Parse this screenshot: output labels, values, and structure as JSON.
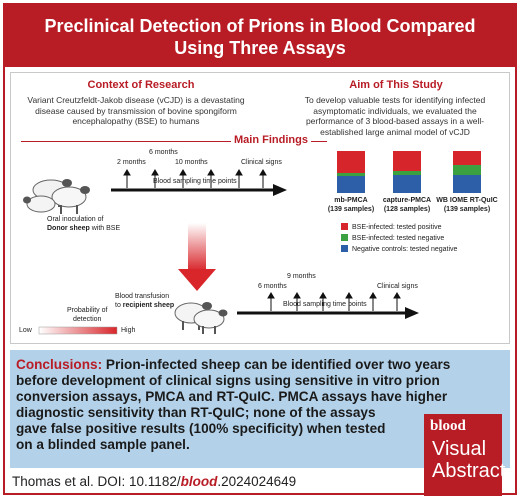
{
  "header": {
    "title_line1": "Preclinical Detection of Prions in Blood Compared",
    "title_line2": "Using Three Assays"
  },
  "context": {
    "title": "Context of Research",
    "lines": [
      "Variant Creutzfeldt-Jakob disease (vCJD) is a devastating",
      "disease caused by transmission of bovine spongiform",
      "encephalopathy (BSE) to humans"
    ]
  },
  "aim": {
    "title": "Aim of This Study",
    "lines": [
      "To develop valuable tests for identifying infected",
      "asymptomatic individuals, we evaluated the",
      "performance of 3 blood-based assays in a well-",
      "established large animal model of vCJD"
    ]
  },
  "main_findings": {
    "title": "Main Findings",
    "donor_timeline": {
      "ticks": [
        "2 months",
        "6 months",
        "10 months",
        "Clinical signs"
      ],
      "axis_label": "Blood sampling time points",
      "caption_line1": "Oral inoculation of",
      "caption_line2_bold": "Donor sheep",
      "caption_line2_rest": " with BSE"
    },
    "recipient_timeline": {
      "ticks": [
        "6 months",
        "9 months",
        "Clinical signs"
      ],
      "axis_label": "Blood sampling time points",
      "caption_line1": "Blood transfusion",
      "caption_line2_prefix": "to ",
      "caption_line2_bold": "recipient sheep"
    },
    "probability": {
      "label_line1": "Probability of",
      "label_line2": "detection",
      "low": "Low",
      "high": "High"
    },
    "assays": [
      {
        "name": "mb-PMCA",
        "samples": "(139 samples)"
      },
      {
        "name": "capture-PMCA",
        "samples": "(128 samples)"
      },
      {
        "name": "WB IOME RT-QuIC",
        "samples": "(139 samples)"
      }
    ],
    "legend": [
      {
        "label": "BSE-infected: tested positive",
        "color": "#d7262b"
      },
      {
        "label": "BSE-infected: tested negative",
        "color": "#3aa040"
      },
      {
        "label": "Negative controls: tested negative",
        "color": "#2d5ea8"
      }
    ]
  },
  "conclusions": {
    "label": "Conclusions:",
    "lines": [
      " Prion-infected sheep can be identified over two years",
      "before development of clinical signs using sensitive in vitro prion",
      "conversion assays, PMCA and RT-QuIC. PMCA assays have higher",
      "diagnostic sensitivity than RT-QuIC; none of the assays",
      "gave false positive results (100% specificity) when tested",
      "on a blinded sample panel."
    ]
  },
  "logo": {
    "brand": "blood",
    "line1": "Visual",
    "line2": "Abstract"
  },
  "citation": {
    "prefix": "Thomas et al. DOI: 10.1182/",
    "journal": "blood",
    "suffix": ".2024024649"
  }
}
